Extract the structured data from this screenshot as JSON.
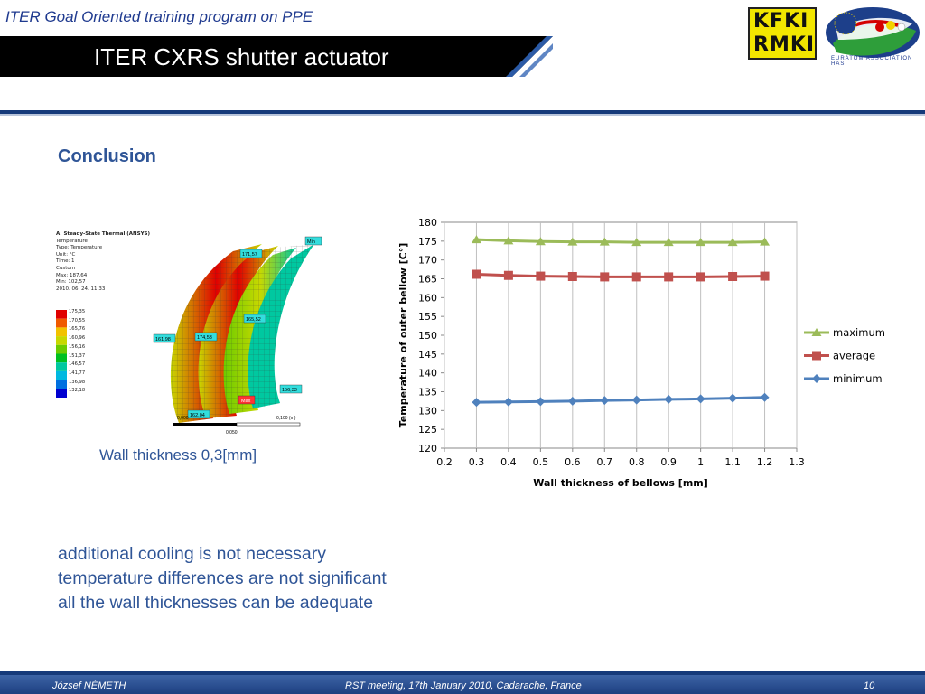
{
  "header": {
    "program": "ITER Goal Oriented training program on PPE",
    "slide_title": "ITER CXRS shutter actuator",
    "logo_line1": "KFKI",
    "logo_line2": "RMKI",
    "association_caption": "EURATOM ASSOCIATION HAS"
  },
  "section_heading": "Conclusion",
  "simulation": {
    "title": "A: Steady-State Thermal (ANSYS)",
    "info": [
      "Temperature",
      "Type: Temperature",
      "Unit: °C",
      "Time: 1",
      "Custom",
      "Max: 187,64",
      "Min: 102,57",
      "2010. 06. 24. 11:33"
    ],
    "legend_values": [
      "175,35",
      "170,55",
      "165,76",
      "160,96",
      "156,16",
      "151,37",
      "146,57",
      "141,77",
      "136,98",
      "132,18"
    ],
    "legend_colors": [
      "#e00000",
      "#f05a00",
      "#f2c200",
      "#c8d800",
      "#6ccc00",
      "#00c020",
      "#00c8a0",
      "#00b8e0",
      "#0070e0",
      "#0000d0"
    ],
    "probes": [
      "Min",
      "171,57",
      "161,98",
      "174,53",
      "165,52",
      "Max",
      "162,04",
      "156,33"
    ],
    "scale": {
      "zero": "0,000",
      "mid": "0,050",
      "end": "0,100 (m)"
    },
    "caption": "Wall thickness 0,3[mm]"
  },
  "chart_data": {
    "type": "line",
    "xlabel": "Wall thickness of bellows [mm]",
    "ylabel": "Temperature of outer bellow [C°]",
    "xlim": [
      0.2,
      1.3
    ],
    "ylim": [
      120,
      180
    ],
    "x_ticks": [
      "0.2",
      "0.3",
      "0.4",
      "0.5",
      "0.6",
      "0.7",
      "0.8",
      "0.9",
      "1",
      "1.1",
      "1.2",
      "1.3"
    ],
    "y_ticks": [
      "120",
      "125",
      "130",
      "135",
      "140",
      "145",
      "150",
      "155",
      "160",
      "165",
      "170",
      "175",
      "180"
    ],
    "x": [
      0.3,
      0.4,
      0.5,
      0.6,
      0.7,
      0.8,
      0.9,
      1.0,
      1.1,
      1.2
    ],
    "series": [
      {
        "name": "maximum",
        "color": "#9bbb59",
        "marker": "triangle",
        "values": [
          175.4,
          175.1,
          174.9,
          174.8,
          174.8,
          174.7,
          174.7,
          174.7,
          174.7,
          174.8
        ]
      },
      {
        "name": "average",
        "color": "#c0504d",
        "marker": "square",
        "values": [
          166.2,
          165.9,
          165.7,
          165.6,
          165.5,
          165.5,
          165.5,
          165.5,
          165.6,
          165.7
        ]
      },
      {
        "name": "minimum",
        "color": "#4f81bd",
        "marker": "diamond",
        "values": [
          132.2,
          132.3,
          132.4,
          132.5,
          132.7,
          132.8,
          133.0,
          133.1,
          133.3,
          133.5
        ]
      }
    ],
    "grid": "vertical",
    "legend": "right"
  },
  "conclusions": [
    "additional cooling is not necessary",
    "temperature differences are not significant",
    "all the wall thicknesses can be adequate"
  ],
  "footer": {
    "author": "József NÉMETH",
    "meeting": "RST meeting, 17th January 2010, Cadarache, France",
    "page": "10"
  }
}
